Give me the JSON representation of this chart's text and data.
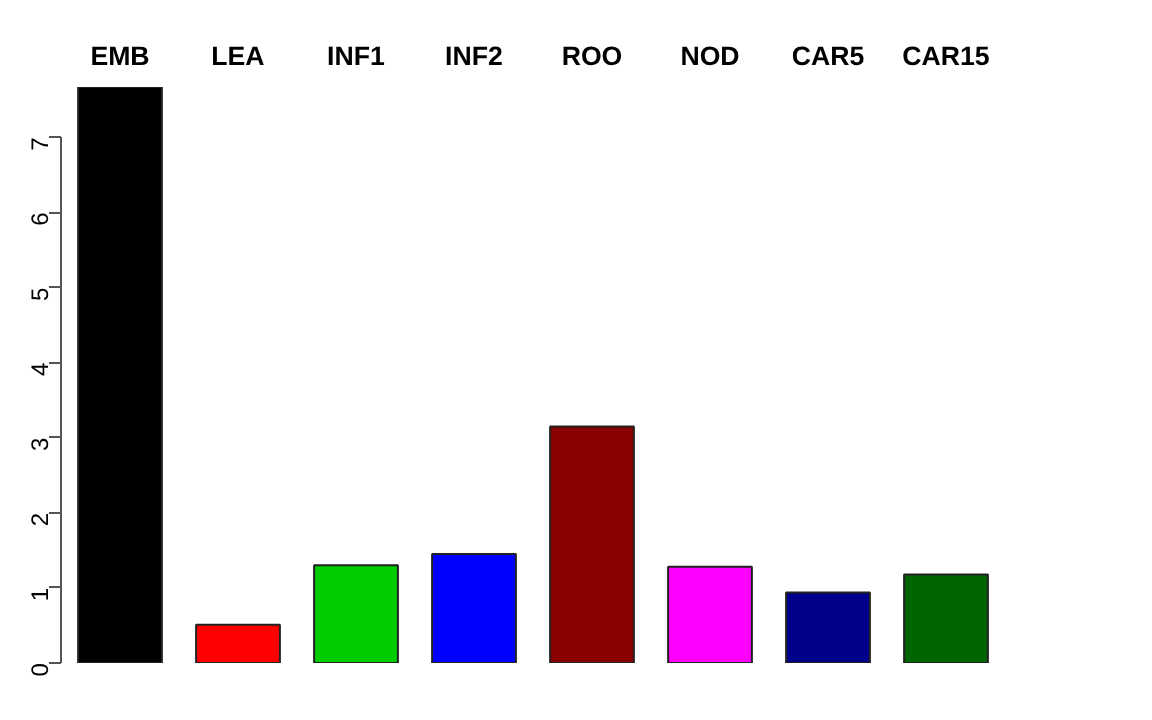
{
  "chart_data": {
    "type": "bar",
    "categories": [
      "EMB",
      "LEA",
      "INF1",
      "INF2",
      "ROO",
      "NOD",
      "CAR5",
      "CAR15"
    ],
    "values": [
      7.67,
      0.51,
      1.3,
      1.45,
      3.15,
      1.28,
      0.94,
      1.18
    ],
    "colors": [
      "#000000",
      "#ff0000",
      "#00cd00",
      "#0000ff",
      "#8b0000",
      "#ff00ff",
      "#00008b",
      "#006400"
    ],
    "ylim": [
      0,
      7.67
    ],
    "yticks": [
      0,
      1,
      2,
      3,
      4,
      5,
      6,
      7
    ],
    "grid": false
  }
}
